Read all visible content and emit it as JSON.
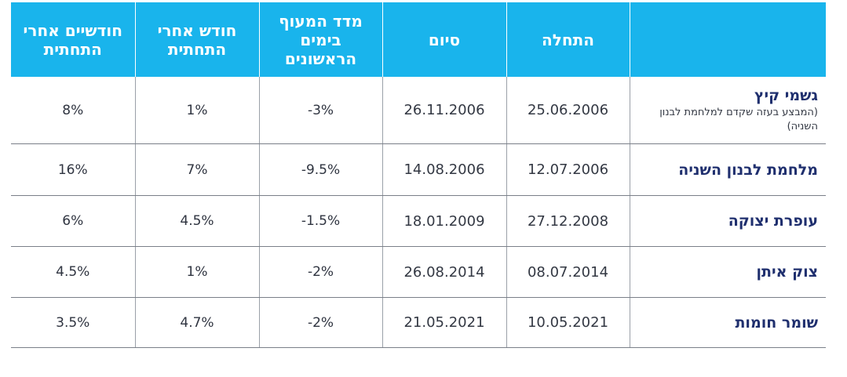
{
  "headers": {
    "two_months": "חודשיים אחרי התחתית",
    "month": "חודש אחרי התחתית",
    "index_drop": "מדד המעוף בימים הראשונים",
    "end": "סיום",
    "start": "התחלה",
    "name": ""
  },
  "rows": [
    {
      "name": "גשמי קיץ",
      "note": "(המבצע בעזה שקדם למלחמת לבנון השניה)",
      "start": "25.06.2006",
      "end": "26.11.2006",
      "index_drop": "-3%",
      "month": "1%",
      "two_months": "8%"
    },
    {
      "name": "מלחמת לבנון השניה",
      "start": "12.07.2006",
      "end": "14.08.2006",
      "index_drop": "-9.5%",
      "month": "7%",
      "two_months": "16%"
    },
    {
      "name": "עופרת יצוקה",
      "start": "27.12.2008",
      "end": "18.01.2009",
      "index_drop": "-1.5%",
      "month": "4.5%",
      "two_months": "6%"
    },
    {
      "name": "צוק איתן",
      "start": "08.07.2014",
      "end": "26.08.2014",
      "index_drop": "-2%",
      "month": "1%",
      "two_months": "4.5%"
    },
    {
      "name": "שומר חומות",
      "start": "10.05.2021",
      "end": "21.05.2021",
      "index_drop": "-2%",
      "month": "4.7%",
      "two_months": "3.5%"
    }
  ],
  "colors": {
    "header_bg": "#19b4ec",
    "header_text": "#ffffff",
    "name_text": "#1f2f6e",
    "grid": "#7a7f88"
  }
}
